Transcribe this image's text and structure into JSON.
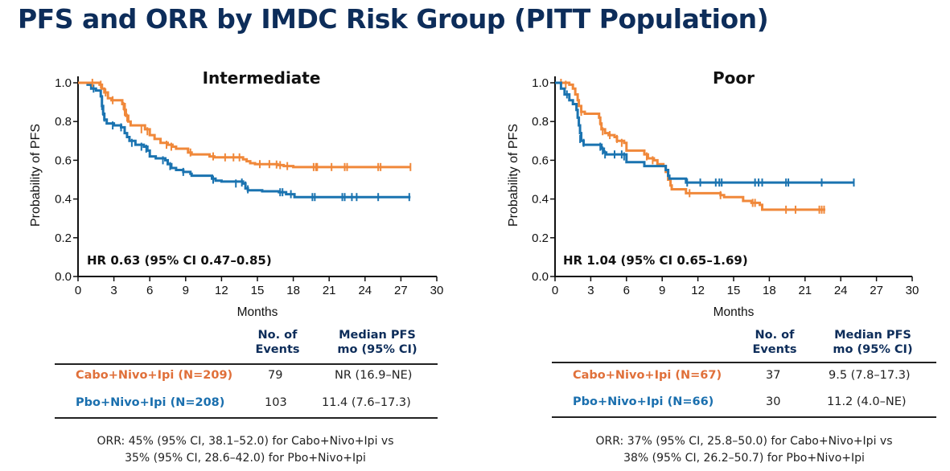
{
  "slide": {
    "title": "PFS and ORR by IMDC Risk Group (PITT Population)"
  },
  "colors": {
    "title": "#0d2d5a",
    "cabo": "#f0883a",
    "pbo": "#1a73b0",
    "cabo_label": "#e0703a",
    "pbo_label": "#1a6fae"
  },
  "chart_data": [
    {
      "type": "line",
      "subtype": "kaplan-meier",
      "title": "Intermediate",
      "xlabel": "Months",
      "ylabel": "Probability of PFS",
      "xlim": [
        0,
        30
      ],
      "ylim": [
        0,
        1.0
      ],
      "xticks": [
        "0",
        "3",
        "6",
        "9",
        "12",
        "15",
        "18",
        "21",
        "24",
        "27",
        "30"
      ],
      "yticks": [
        "0.0",
        "0.2",
        "0.4",
        "0.6",
        "0.8",
        "1.0"
      ],
      "annotation": "HR 0.63 (95% CI 0.47–0.85)",
      "grid": false,
      "series": [
        {
          "name": "Cabo+Nivo+Ipi",
          "color": "#f0883a",
          "steps": [
            [
              0,
              1.0
            ],
            [
              1.8,
              0.99
            ],
            [
              2.0,
              0.97
            ],
            [
              2.2,
              0.95
            ],
            [
              2.5,
              0.92
            ],
            [
              2.8,
              0.91
            ],
            [
              3.7,
              0.89
            ],
            [
              3.9,
              0.86
            ],
            [
              4.0,
              0.83
            ],
            [
              4.2,
              0.8
            ],
            [
              4.4,
              0.78
            ],
            [
              5.6,
              0.76
            ],
            [
              6.0,
              0.73
            ],
            [
              6.4,
              0.71
            ],
            [
              6.9,
              0.69
            ],
            [
              7.5,
              0.68
            ],
            [
              7.9,
              0.67
            ],
            [
              8.2,
              0.66
            ],
            [
              9.2,
              0.64
            ],
            [
              9.5,
              0.63
            ],
            [
              11.0,
              0.62
            ],
            [
              11.4,
              0.615
            ],
            [
              13.8,
              0.605
            ],
            [
              14.1,
              0.595
            ],
            [
              14.4,
              0.585
            ],
            [
              14.8,
              0.58
            ],
            [
              16.7,
              0.575
            ],
            [
              17.2,
              0.57
            ],
            [
              18.0,
              0.565
            ],
            [
              27.8,
              0.565
            ]
          ],
          "censors": [
            [
              1.2,
              1.0
            ],
            [
              1.9,
              0.99
            ],
            [
              2.3,
              0.95
            ],
            [
              2.9,
              0.91
            ],
            [
              3.8,
              0.88
            ],
            [
              3.9,
              0.85
            ],
            [
              4.1,
              0.82
            ],
            [
              5.3,
              0.76
            ],
            [
              5.8,
              0.75
            ],
            [
              7.4,
              0.68
            ],
            [
              7.8,
              0.67
            ],
            [
              9.4,
              0.64
            ],
            [
              11.3,
              0.62
            ],
            [
              12.3,
              0.615
            ],
            [
              13.0,
              0.615
            ],
            [
              13.5,
              0.615
            ],
            [
              15.2,
              0.58
            ],
            [
              16.0,
              0.58
            ],
            [
              16.6,
              0.578
            ],
            [
              16.9,
              0.575
            ],
            [
              17.5,
              0.57
            ],
            [
              19.7,
              0.565
            ],
            [
              19.9,
              0.565
            ],
            [
              20.0,
              0.565
            ],
            [
              21.2,
              0.565
            ],
            [
              22.3,
              0.565
            ],
            [
              22.5,
              0.565
            ],
            [
              25.1,
              0.565
            ],
            [
              25.3,
              0.565
            ],
            [
              27.8,
              0.565
            ]
          ]
        },
        {
          "name": "Pbo+Nivo+Ipi",
          "color": "#1a73b0",
          "steps": [
            [
              0,
              1.0
            ],
            [
              0.8,
              0.99
            ],
            [
              1.1,
              0.97
            ],
            [
              1.5,
              0.96
            ],
            [
              1.9,
              0.93
            ],
            [
              2.0,
              0.88
            ],
            [
              2.1,
              0.84
            ],
            [
              2.2,
              0.81
            ],
            [
              2.4,
              0.79
            ],
            [
              3.0,
              0.78
            ],
            [
              3.6,
              0.77
            ],
            [
              3.9,
              0.74
            ],
            [
              4.1,
              0.72
            ],
            [
              4.3,
              0.7
            ],
            [
              4.8,
              0.68
            ],
            [
              5.5,
              0.67
            ],
            [
              5.8,
              0.65
            ],
            [
              6.0,
              0.62
            ],
            [
              6.5,
              0.61
            ],
            [
              7.3,
              0.6
            ],
            [
              7.5,
              0.58
            ],
            [
              7.8,
              0.56
            ],
            [
              8.2,
              0.55
            ],
            [
              8.8,
              0.54
            ],
            [
              9.4,
              0.53
            ],
            [
              9.5,
              0.52
            ],
            [
              11.2,
              0.505
            ],
            [
              11.5,
              0.495
            ],
            [
              12.0,
              0.49
            ],
            [
              13.8,
              0.48
            ],
            [
              14.0,
              0.455
            ],
            [
              14.2,
              0.445
            ],
            [
              15.4,
              0.44
            ],
            [
              16.8,
              0.435
            ],
            [
              17.4,
              0.425
            ],
            [
              18.1,
              0.41
            ],
            [
              27.8,
              0.41
            ]
          ],
          "censors": [
            [
              1.3,
              0.97
            ],
            [
              2.0,
              0.88
            ],
            [
              2.1,
              0.85
            ],
            [
              2.2,
              0.82
            ],
            [
              2.9,
              0.78
            ],
            [
              3.6,
              0.77
            ],
            [
              4.5,
              0.69
            ],
            [
              5.3,
              0.67
            ],
            [
              5.7,
              0.66
            ],
            [
              7.1,
              0.6
            ],
            [
              7.7,
              0.57
            ],
            [
              8.8,
              0.54
            ],
            [
              11.3,
              0.5
            ],
            [
              13.2,
              0.48
            ],
            [
              13.7,
              0.485
            ],
            [
              14.0,
              0.47
            ],
            [
              14.2,
              0.45
            ],
            [
              16.9,
              0.435
            ],
            [
              17.1,
              0.435
            ],
            [
              17.8,
              0.425
            ],
            [
              19.6,
              0.41
            ],
            [
              19.8,
              0.41
            ],
            [
              22.1,
              0.41
            ],
            [
              22.3,
              0.41
            ],
            [
              22.9,
              0.41
            ],
            [
              23.3,
              0.41
            ],
            [
              25.1,
              0.41
            ],
            [
              27.7,
              0.41
            ]
          ]
        }
      ]
    },
    {
      "type": "line",
      "subtype": "kaplan-meier",
      "title": "Poor",
      "xlabel": "Months",
      "ylabel": "Probability of PFS",
      "xlim": [
        0,
        30
      ],
      "ylim": [
        0,
        1.0
      ],
      "xticks": [
        "0",
        "3",
        "6",
        "9",
        "12",
        "15",
        "18",
        "21",
        "24",
        "27",
        "30"
      ],
      "yticks": [
        "0.0",
        "0.2",
        "0.4",
        "0.6",
        "0.8",
        "1.0"
      ],
      "annotation": "HR 1.04 (95% CI 0.65–1.69)",
      "grid": false,
      "series": [
        {
          "name": "Cabo+Nivo+Ipi",
          "color": "#f0883a",
          "steps": [
            [
              0,
              1.0
            ],
            [
              1.2,
              0.99
            ],
            [
              1.5,
              0.97
            ],
            [
              1.7,
              0.94
            ],
            [
              1.9,
              0.91
            ],
            [
              2.0,
              0.88
            ],
            [
              2.2,
              0.85
            ],
            [
              2.5,
              0.84
            ],
            [
              3.7,
              0.82
            ],
            [
              3.8,
              0.79
            ],
            [
              3.9,
              0.76
            ],
            [
              4.2,
              0.74
            ],
            [
              4.5,
              0.73
            ],
            [
              5.0,
              0.72
            ],
            [
              5.2,
              0.7
            ],
            [
              5.8,
              0.69
            ],
            [
              6.0,
              0.65
            ],
            [
              7.5,
              0.63
            ],
            [
              7.8,
              0.61
            ],
            [
              8.3,
              0.6
            ],
            [
              8.6,
              0.58
            ],
            [
              9.1,
              0.57
            ],
            [
              9.3,
              0.54
            ],
            [
              9.5,
              0.5
            ],
            [
              9.7,
              0.47
            ],
            [
              9.8,
              0.45
            ],
            [
              11.0,
              0.43
            ],
            [
              13.9,
              0.42
            ],
            [
              14.2,
              0.41
            ],
            [
              15.8,
              0.39
            ],
            [
              16.5,
              0.38
            ],
            [
              17.2,
              0.37
            ],
            [
              17.4,
              0.345
            ],
            [
              22.7,
              0.345
            ]
          ],
          "censors": [
            [
              0.5,
              1.0
            ],
            [
              0.9,
              0.99
            ],
            [
              2.2,
              0.85
            ],
            [
              3.8,
              0.8
            ],
            [
              4.0,
              0.75
            ],
            [
              4.6,
              0.73
            ],
            [
              5.2,
              0.71
            ],
            [
              5.6,
              0.69
            ],
            [
              7.7,
              0.62
            ],
            [
              8.2,
              0.6
            ],
            [
              11.3,
              0.43
            ],
            [
              13.9,
              0.42
            ],
            [
              16.6,
              0.38
            ],
            [
              16.8,
              0.38
            ],
            [
              19.4,
              0.345
            ],
            [
              20.2,
              0.345
            ],
            [
              22.2,
              0.345
            ],
            [
              22.4,
              0.345
            ],
            [
              22.6,
              0.345
            ]
          ]
        },
        {
          "name": "Pbo+Nivo+Ipi",
          "color": "#1a73b0",
          "steps": [
            [
              0,
              1.0
            ],
            [
              0.5,
              0.97
            ],
            [
              0.8,
              0.94
            ],
            [
              1.2,
              0.91
            ],
            [
              1.5,
              0.89
            ],
            [
              1.8,
              0.86
            ],
            [
              1.9,
              0.82
            ],
            [
              2.0,
              0.78
            ],
            [
              2.1,
              0.74
            ],
            [
              2.2,
              0.7
            ],
            [
              2.4,
              0.68
            ],
            [
              3.9,
              0.66
            ],
            [
              4.1,
              0.64
            ],
            [
              4.3,
              0.63
            ],
            [
              6.0,
              0.59
            ],
            [
              7.5,
              0.57
            ],
            [
              9.3,
              0.55
            ],
            [
              9.5,
              0.52
            ],
            [
              9.6,
              0.505
            ],
            [
              11.0,
              0.485
            ],
            [
              25.1,
              0.485
            ]
          ],
          "censors": [
            [
              1.0,
              0.94
            ],
            [
              2.1,
              0.71
            ],
            [
              2.4,
              0.69
            ],
            [
              3.8,
              0.67
            ],
            [
              4.0,
              0.65
            ],
            [
              4.2,
              0.63
            ],
            [
              5.0,
              0.63
            ],
            [
              5.6,
              0.63
            ],
            [
              5.8,
              0.62
            ],
            [
              11.1,
              0.485
            ],
            [
              12.2,
              0.485
            ],
            [
              13.5,
              0.485
            ],
            [
              13.8,
              0.485
            ],
            [
              14.0,
              0.485
            ],
            [
              16.8,
              0.485
            ],
            [
              17.1,
              0.485
            ],
            [
              17.4,
              0.485
            ],
            [
              19.4,
              0.485
            ],
            [
              19.6,
              0.485
            ],
            [
              22.4,
              0.485
            ],
            [
              25.1,
              0.485
            ]
          ]
        }
      ]
    }
  ],
  "tables": [
    {
      "headers": {
        "events": [
          "No. of",
          "Events"
        ],
        "median": [
          "Median PFS",
          "mo (95% CI)"
        ]
      },
      "rows": [
        {
          "arm": "Cabo+Nivo+Ipi (N=209)",
          "events": "79",
          "median": "NR (16.9–NE)"
        },
        {
          "arm": "Pbo+Nivo+Ipi (N=208)",
          "events": "103",
          "median": "11.4 (7.6–17.3)"
        }
      ],
      "orr": [
        "ORR: 45% (95% CI, 38.1–52.0) for Cabo+Nivo+Ipi vs",
        "35% (95% CI, 28.6–42.0) for Pbo+Nivo+Ipi"
      ]
    },
    {
      "headers": {
        "events": [
          "No. of",
          "Events"
        ],
        "median": [
          "Median PFS",
          "mo (95% CI)"
        ]
      },
      "rows": [
        {
          "arm": "Cabo+Nivo+Ipi (N=67)",
          "events": "37",
          "median": "9.5 (7.8–17.3)"
        },
        {
          "arm": "Pbo+Nivo+Ipi (N=66)",
          "events": "30",
          "median": "11.2 (4.0–NE)"
        }
      ],
      "orr": [
        "ORR: 37% (95% CI, 25.8–50.0) for Cabo+Nivo+Ipi vs",
        "38% (95% CI, 26.2–50.7) for Pbo+Nivo+Ipi"
      ]
    }
  ]
}
